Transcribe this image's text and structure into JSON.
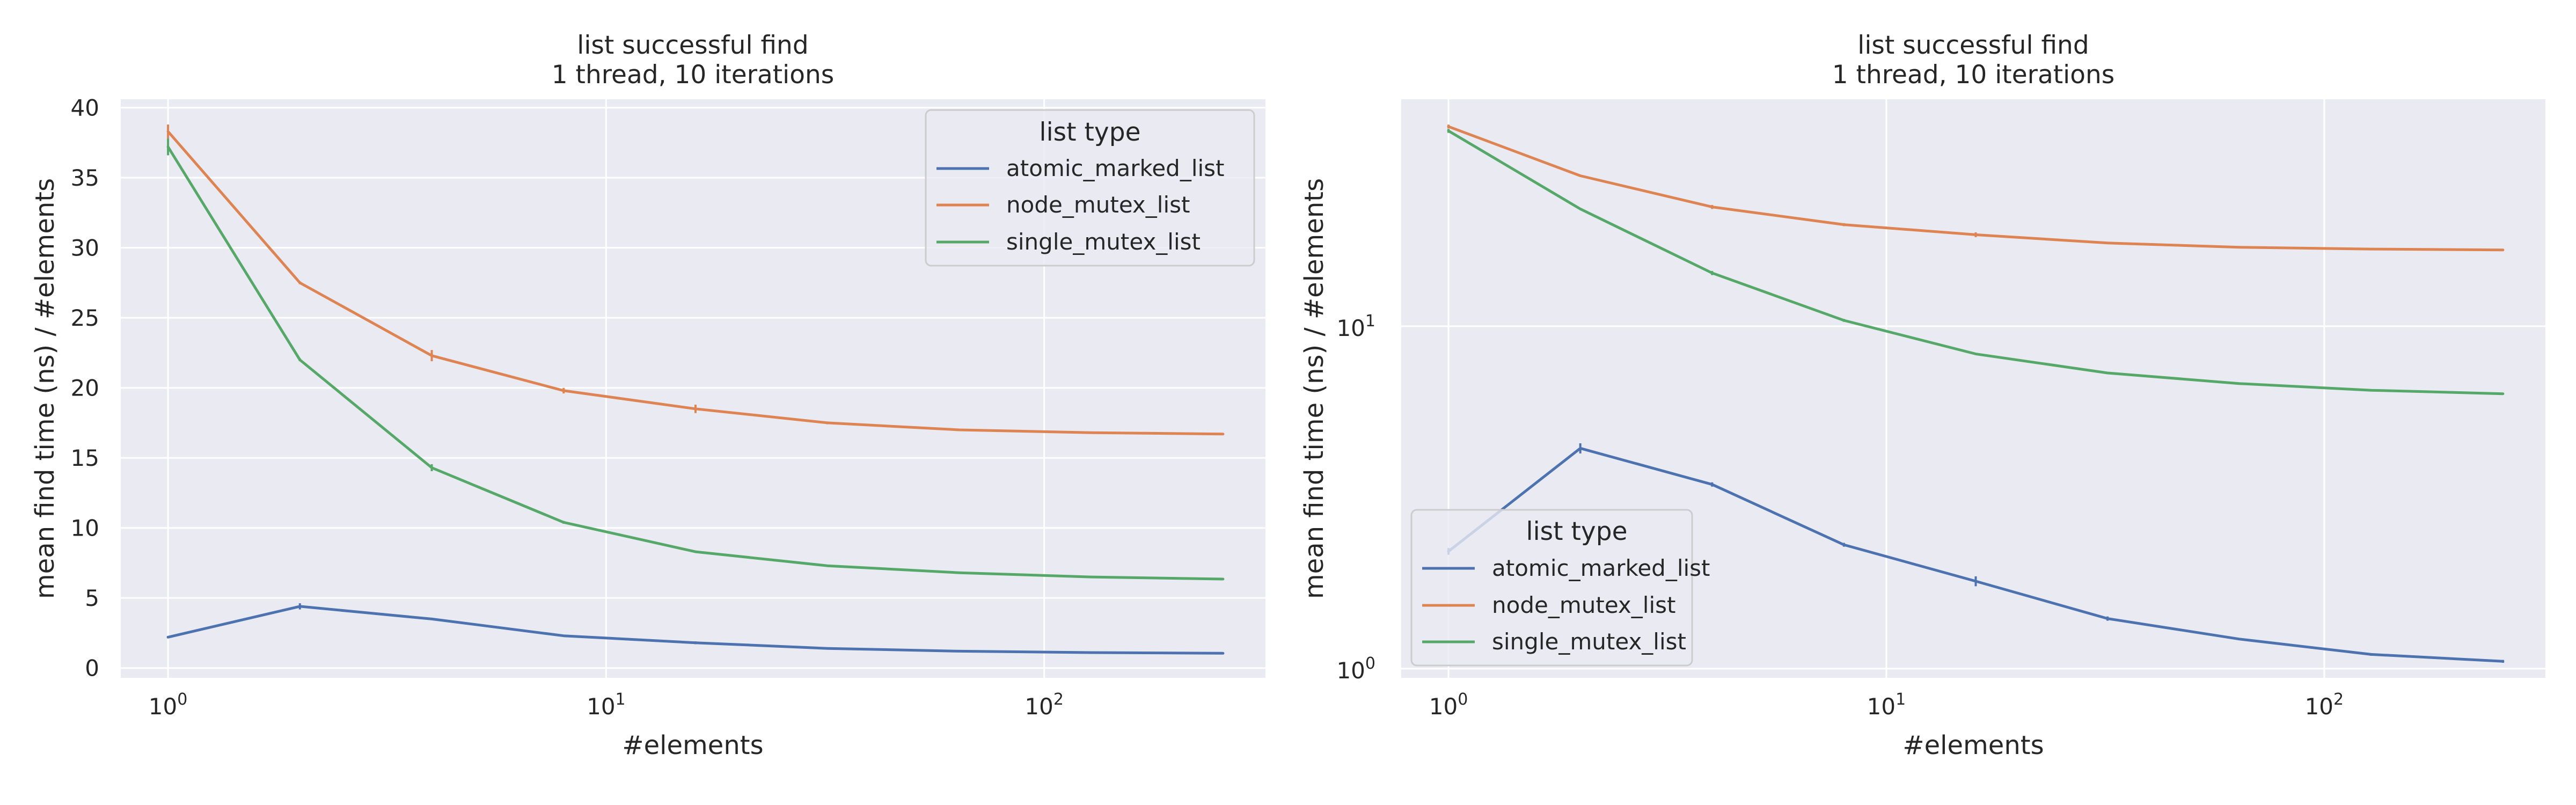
{
  "colors": {
    "background": "#eaeaf2",
    "grid": "#ffffff",
    "text": "#262626",
    "series": [
      "#4c72b0",
      "#dd8452",
      "#55a868"
    ]
  },
  "chart_data": [
    {
      "type": "line",
      "title_line1": "list successful find",
      "title_line2": "1 thread, 10 iterations",
      "xlabel": "#elements",
      "ylabel": "mean find time (ns) / #elements",
      "xscale": "log",
      "yscale": "linear",
      "xlim": [
        0.78,
        320
      ],
      "ylim": [
        -0.7,
        40.6
      ],
      "x_ticks": [
        1,
        10,
        100
      ],
      "x_tick_labels": [
        {
          "base": "10",
          "exp": "0"
        },
        {
          "base": "10",
          "exp": "1"
        },
        {
          "base": "10",
          "exp": "2"
        }
      ],
      "y_ticks": [
        0,
        5,
        10,
        15,
        20,
        25,
        30,
        35,
        40
      ],
      "y_tick_labels": [
        "0",
        "5",
        "10",
        "15",
        "20",
        "25",
        "30",
        "35",
        "40"
      ],
      "grid": true,
      "legend": {
        "title": "list type",
        "position": "top-right"
      },
      "x": [
        1,
        2,
        4,
        8,
        16,
        32,
        64,
        128,
        256
      ],
      "series": [
        {
          "name": "atomic_marked_list",
          "values": [
            2.2,
            4.4,
            3.5,
            2.3,
            1.8,
            1.4,
            1.2,
            1.1,
            1.05
          ],
          "err": [
            0.08,
            0.22,
            0.08,
            0.05,
            0.1,
            0.03,
            0.02,
            0.02,
            0.02
          ]
        },
        {
          "name": "node_mutex_list",
          "values": [
            38.3,
            27.5,
            22.3,
            19.8,
            18.5,
            17.5,
            17.0,
            16.8,
            16.7
          ],
          "err": [
            0.5,
            0.1,
            0.4,
            0.2,
            0.3,
            0.1,
            0.05,
            0.05,
            0.05
          ]
        },
        {
          "name": "single_mutex_list",
          "values": [
            37.2,
            22.0,
            14.3,
            10.4,
            8.3,
            7.3,
            6.8,
            6.5,
            6.35
          ],
          "err": [
            0.6,
            0.1,
            0.25,
            0.1,
            0.05,
            0.05,
            0.03,
            0.03,
            0.03
          ]
        }
      ]
    },
    {
      "type": "line",
      "title_line1": "list successful find",
      "title_line2": "1 thread, 10 iterations",
      "xlabel": "#elements",
      "ylabel": "mean find time (ns) / #elements",
      "xscale": "log",
      "yscale": "log",
      "xlim": [
        0.78,
        320
      ],
      "ylim": [
        0.94,
        46
      ],
      "x_ticks": [
        1,
        10,
        100
      ],
      "x_tick_labels": [
        {
          "base": "10",
          "exp": "0"
        },
        {
          "base": "10",
          "exp": "1"
        },
        {
          "base": "10",
          "exp": "2"
        }
      ],
      "y_ticks": [
        1,
        10
      ],
      "y_tick_labels": [
        {
          "base": "10",
          "exp": "0"
        },
        {
          "base": "10",
          "exp": "1"
        }
      ],
      "grid": true,
      "legend": {
        "title": "list type",
        "position": "bottom-left"
      },
      "x": [
        1,
        2,
        4,
        8,
        16,
        32,
        64,
        128,
        256
      ],
      "series": [
        {
          "name": "atomic_marked_list",
          "values": [
            2.2,
            4.4,
            3.45,
            2.3,
            1.8,
            1.4,
            1.22,
            1.1,
            1.05
          ],
          "err": [
            0.05,
            0.15,
            0.05,
            0.03,
            0.06,
            0.02,
            0.01,
            0.01,
            0.01
          ]
        },
        {
          "name": "node_mutex_list",
          "values": [
            38.3,
            27.5,
            22.3,
            19.8,
            18.5,
            17.5,
            17.0,
            16.8,
            16.7
          ],
          "err": [
            0.5,
            0.1,
            0.3,
            0.2,
            0.3,
            0.1,
            0.05,
            0.05,
            0.05
          ]
        },
        {
          "name": "single_mutex_list",
          "values": [
            37.2,
            22.0,
            14.3,
            10.4,
            8.3,
            7.3,
            6.8,
            6.5,
            6.35
          ],
          "err": [
            0.5,
            0.1,
            0.2,
            0.1,
            0.05,
            0.05,
            0.03,
            0.03,
            0.03
          ]
        }
      ]
    }
  ]
}
